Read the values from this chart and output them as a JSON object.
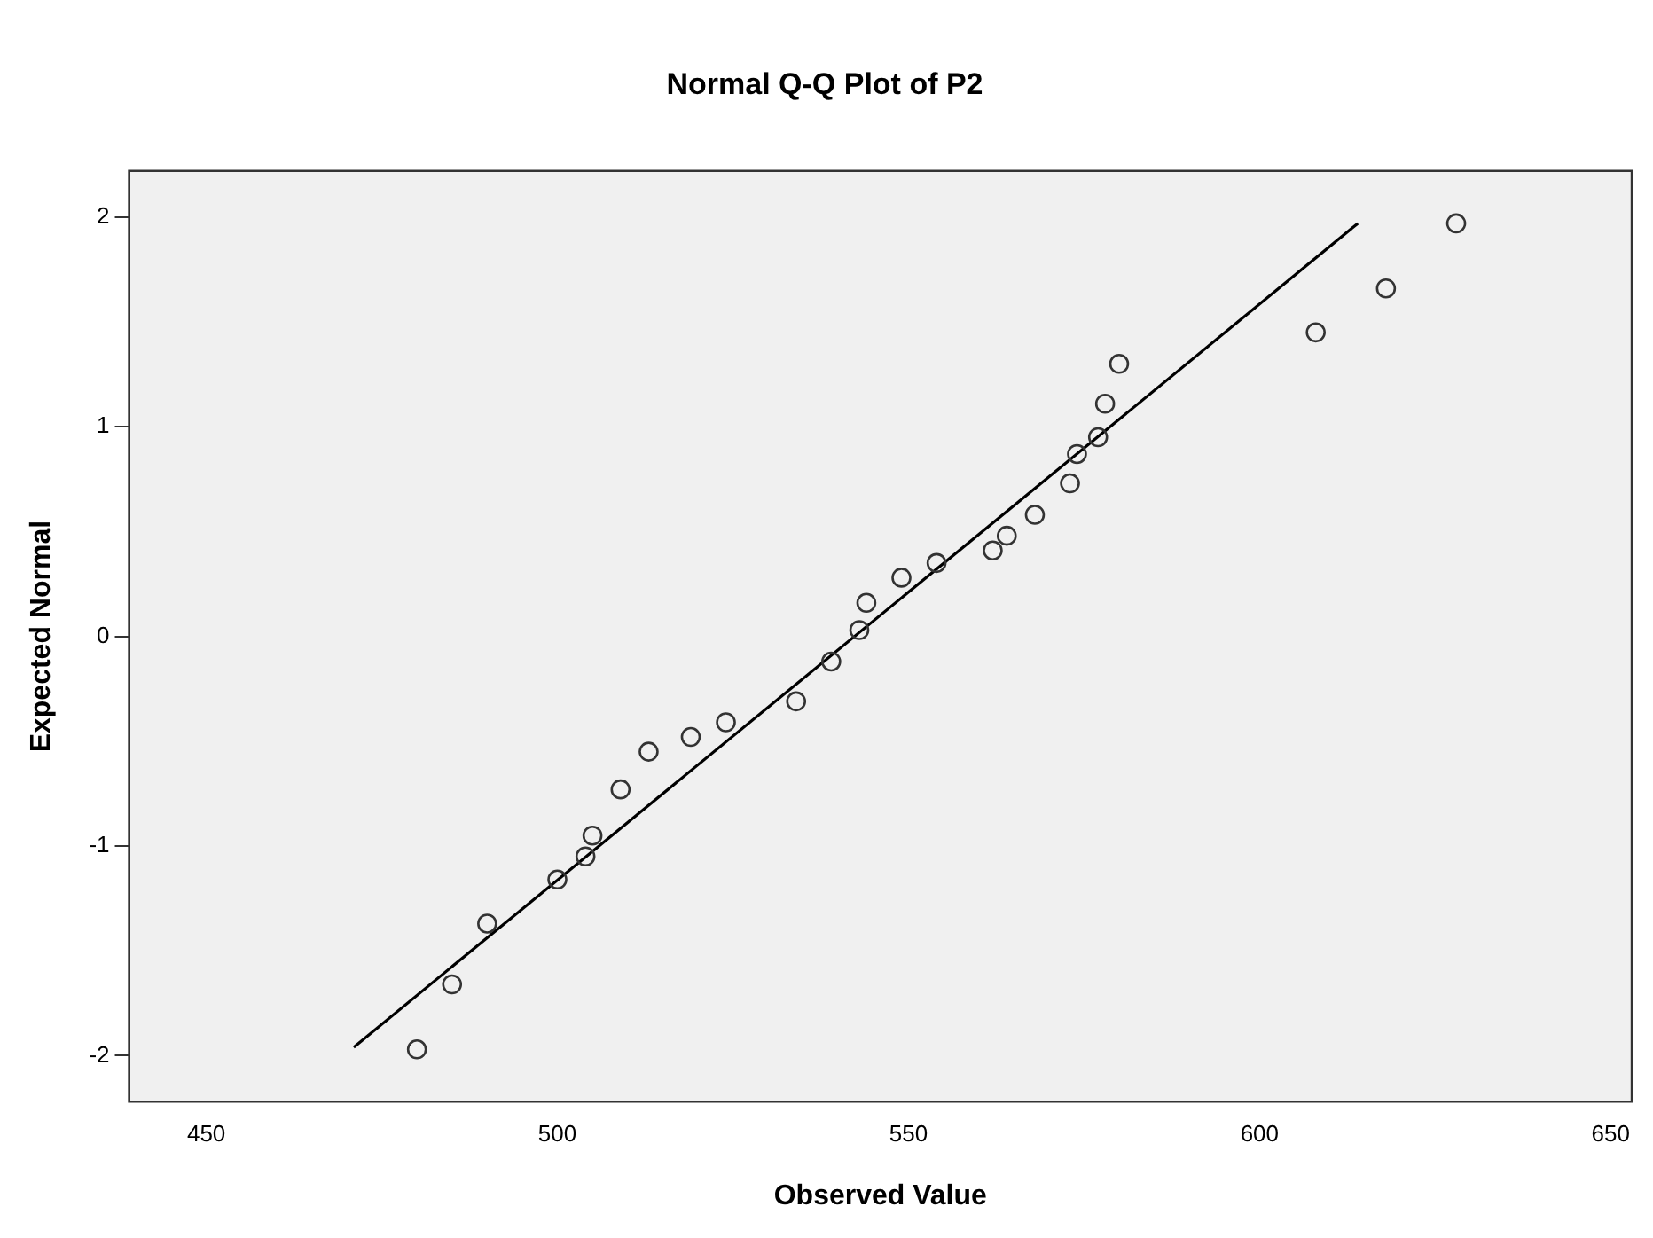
{
  "chart_data": {
    "type": "scatter",
    "title": "Normal Q-Q Plot of P2",
    "xlabel": "Observed Value",
    "ylabel": "Expected Normal",
    "x": [
      480,
      485,
      490,
      500,
      504,
      505,
      509,
      513,
      519,
      524,
      534,
      539,
      543,
      544,
      549,
      554,
      562,
      564,
      568,
      573,
      574,
      577,
      578,
      580,
      608,
      618,
      628
    ],
    "series": [
      {
        "color": "#333333",
        "marker": "circle",
        "values": [
          -1.97,
          -1.66,
          -1.37,
          -1.16,
          -1.05,
          -0.95,
          -0.73,
          -0.55,
          -0.48,
          -0.41,
          -0.31,
          -0.12,
          0.03,
          0.16,
          0.28,
          0.35,
          0.41,
          0.48,
          0.58,
          0.73,
          0.87,
          0.95,
          1.11,
          1.3,
          1.45,
          1.66,
          1.97
        ]
      },
      {
        "type": "line",
        "color": "#000000",
        "marker": "none",
        "x": [
          471,
          614
        ],
        "values": [
          -1.96,
          1.97
        ]
      }
    ],
    "xlim": [
      439,
      653
    ],
    "xticks": [
      450,
      500,
      550,
      600,
      650
    ],
    "ylim": [
      -2.22,
      2.22
    ],
    "yticks": [
      -2,
      -1,
      0,
      1,
      2
    ],
    "grid": false,
    "legend": false
  }
}
